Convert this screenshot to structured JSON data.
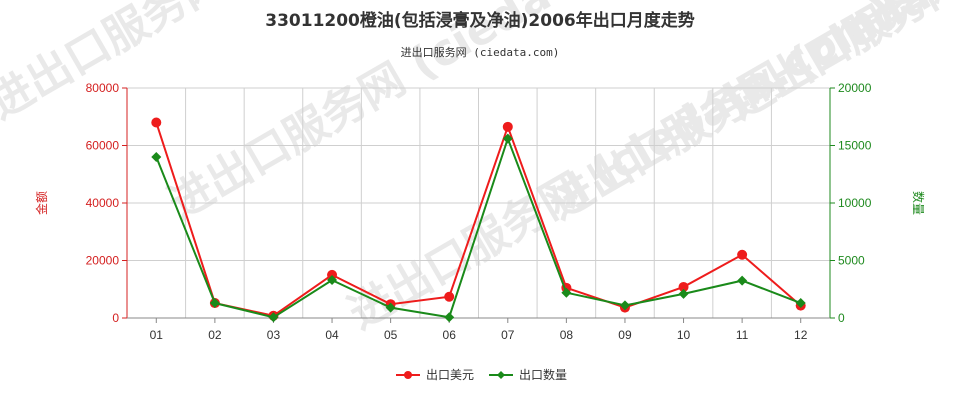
{
  "chart_data": {
    "type": "line",
    "title": "33011200橙油(包括浸膏及净油)2006年出口月度走势",
    "subtitle": "进出口服务网 (ciedata.com)",
    "watermark": "进出口服务网 (ciedata.com)",
    "categories": [
      "01",
      "02",
      "03",
      "04",
      "05",
      "06",
      "07",
      "08",
      "09",
      "10",
      "11",
      "12"
    ],
    "ylabel_left": "金额",
    "ylabel_right": "数量",
    "ylim_left": [
      0,
      80000
    ],
    "ylim_right": [
      0,
      20000
    ],
    "yticks_left": [
      "0",
      "20000",
      "40000",
      "60000",
      "80000"
    ],
    "yticks_right": [
      "0",
      "5000",
      "10000",
      "15000",
      "20000"
    ],
    "grid": true,
    "legend_position": "bottom",
    "series": [
      {
        "name": "出口美元",
        "axis": "left",
        "color": "#ee1c1c",
        "values": [
          68000,
          5200,
          800,
          15000,
          4800,
          7400,
          66500,
          10500,
          3600,
          10800,
          22000,
          4300
        ]
      },
      {
        "name": "出口数量",
        "axis": "right",
        "color": "#1a8a1a",
        "values": [
          14000,
          1300,
          60,
          3300,
          900,
          70,
          15600,
          2200,
          1100,
          2100,
          3250,
          1300
        ]
      }
    ]
  }
}
